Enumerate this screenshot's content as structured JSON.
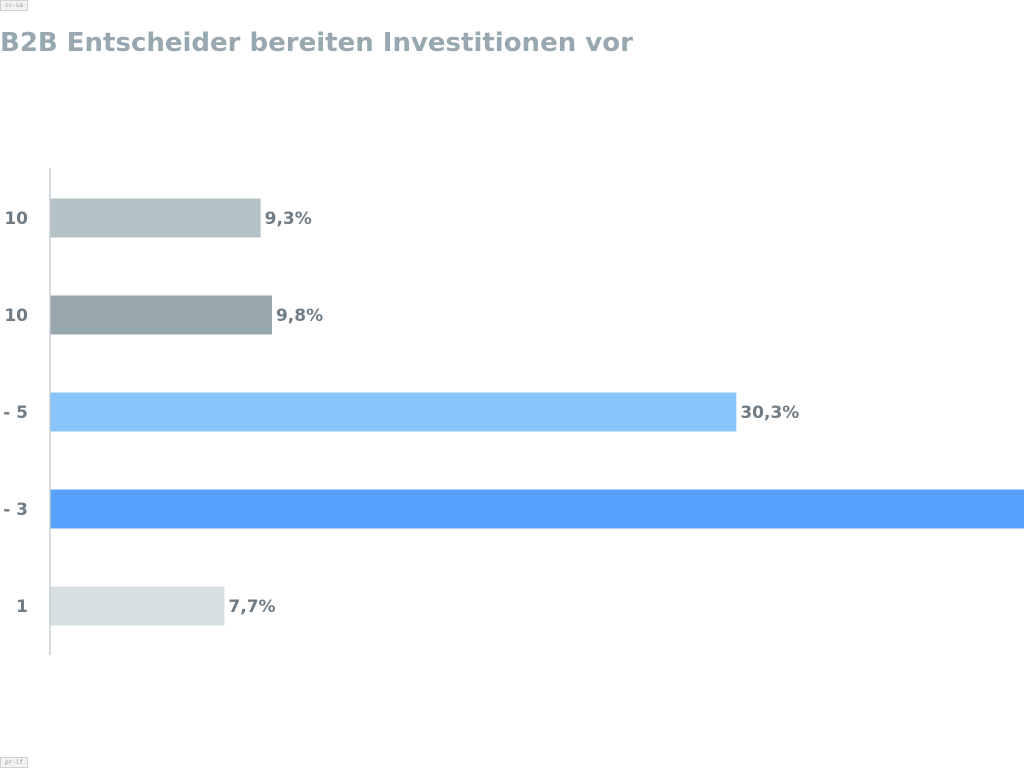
{
  "corner_tags": {
    "top": "cc-sa",
    "bottom": "pr-if"
  },
  "chart_data": {
    "type": "bar",
    "orientation": "horizontal",
    "title": "B2B Entscheider bereiten Investitionen vor",
    "xlabel": "",
    "ylabel": "",
    "categories": [
      "10",
      "10",
      "- 5",
      "- 3",
      "1"
    ],
    "values": [
      9.3,
      9.8,
      30.3,
      43.0,
      7.7
    ],
    "value_labels": [
      "9,3%",
      "9,8%",
      "30,3%",
      "",
      "7,7%"
    ],
    "colors": [
      "#b4c1c6",
      "#98a6ad",
      "#88c4fb",
      "#57a1fb",
      "#d6dfe2"
    ],
    "xlim": [
      0,
      43.0
    ],
    "grid": false,
    "legend": "none"
  }
}
